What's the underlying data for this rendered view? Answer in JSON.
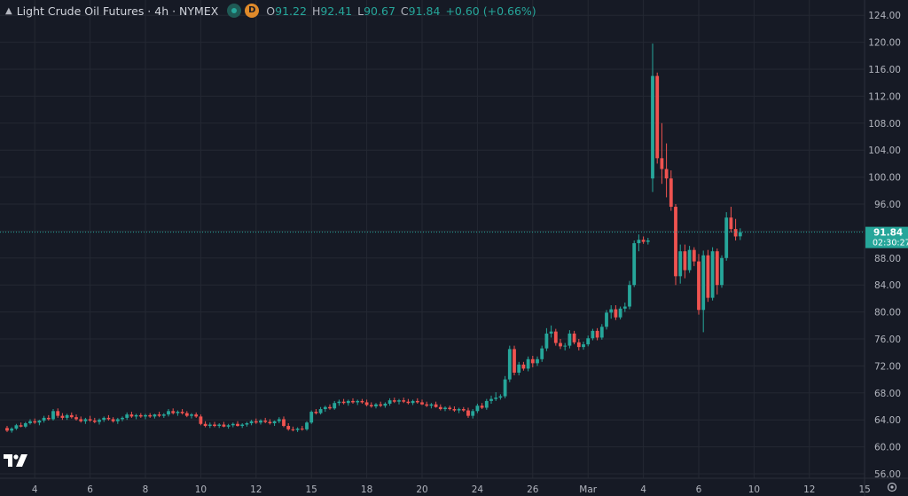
{
  "header": {
    "title": "Light Crude Oil Futures · 4h · NYMEX",
    "badge_letter": "D",
    "open_label": "O",
    "open": "91.22",
    "high_label": "H",
    "high": "92.41",
    "low_label": "L",
    "low": "90.67",
    "close_label": "C",
    "close": "91.84",
    "change": "+0.60 (+0.66%)"
  },
  "price_tag": {
    "price": "91.84",
    "countdown": "02:30:27"
  },
  "colors": {
    "up": "#26a69a",
    "down": "#ef5350",
    "background": "#161a25",
    "text": "#b2b5be",
    "grid": "#242833"
  },
  "icons": {
    "logo": "tradingview-logo",
    "settings": "gear-icon"
  },
  "chart_data": {
    "type": "candlestick",
    "title": "",
    "xlabel": "",
    "ylabel": "",
    "ylim": [
      54,
      126
    ],
    "yticks": [
      56,
      60,
      64,
      68,
      72,
      76,
      80,
      84,
      88,
      92,
      96,
      100,
      104,
      108,
      112,
      116,
      120,
      124
    ],
    "ytick_labels": [
      "56.00",
      "60.00",
      "64.00",
      "68.00",
      "72.00",
      "76.00",
      "80.00",
      "84.00",
      "88.00",
      "92.00",
      "96.00",
      "100.00",
      "104.00",
      "108.00",
      "112.00",
      "116.00",
      "120.00",
      "124.00"
    ],
    "xtick_labels": [
      "4",
      "6",
      "8",
      "10",
      "12",
      "15",
      "18",
      "20",
      "24",
      "26",
      "Mar",
      "4",
      "6",
      "10",
      "12",
      "15"
    ],
    "xtick_candle_index": [
      6,
      18,
      30,
      42,
      54,
      66,
      78,
      90,
      102,
      114,
      126,
      138,
      150,
      162,
      174,
      186
    ],
    "last_price": 91.84,
    "candles": [
      [
        62.8,
        63.1,
        62.2,
        62.4
      ],
      [
        62.4,
        62.9,
        62.1,
        62.7
      ],
      [
        62.7,
        63.4,
        62.5,
        63.2
      ],
      [
        63.2,
        63.6,
        62.9,
        63.0
      ],
      [
        63.0,
        63.7,
        62.8,
        63.5
      ],
      [
        63.5,
        64.1,
        63.3,
        63.8
      ],
      [
        63.8,
        64.2,
        63.4,
        63.6
      ],
      [
        63.6,
        64.0,
        63.2,
        63.9
      ],
      [
        63.9,
        64.6,
        63.6,
        64.3
      ],
      [
        64.3,
        64.7,
        63.9,
        64.1
      ],
      [
        64.1,
        65.6,
        63.9,
        65.3
      ],
      [
        65.3,
        65.7,
        64.3,
        64.6
      ],
      [
        64.6,
        65.0,
        64.0,
        64.3
      ],
      [
        64.3,
        64.9,
        64.0,
        64.7
      ],
      [
        64.7,
        65.1,
        64.2,
        64.4
      ],
      [
        64.4,
        64.8,
        63.9,
        64.1
      ],
      [
        64.1,
        64.5,
        63.6,
        63.8
      ],
      [
        63.8,
        64.3,
        63.4,
        64.1
      ],
      [
        64.1,
        64.6,
        63.7,
        63.9
      ],
      [
        63.9,
        64.3,
        63.5,
        63.7
      ],
      [
        63.7,
        64.2,
        63.3,
        64.0
      ],
      [
        64.0,
        64.5,
        63.7,
        64.3
      ],
      [
        64.3,
        64.7,
        63.9,
        64.1
      ],
      [
        64.1,
        64.4,
        63.6,
        63.8
      ],
      [
        63.8,
        64.3,
        63.4,
        64.1
      ],
      [
        64.1,
        64.5,
        63.8,
        64.3
      ],
      [
        64.3,
        65.1,
        64.0,
        64.8
      ],
      [
        64.8,
        65.2,
        64.3,
        64.5
      ],
      [
        64.5,
        64.9,
        64.1,
        64.7
      ],
      [
        64.7,
        65.0,
        64.3,
        64.5
      ],
      [
        64.5,
        64.9,
        64.1,
        64.7
      ],
      [
        64.7,
        65.0,
        64.3,
        64.5
      ],
      [
        64.5,
        64.9,
        64.2,
        64.8
      ],
      [
        64.8,
        65.2,
        64.4,
        64.6
      ],
      [
        64.6,
        65.0,
        64.3,
        64.8
      ],
      [
        64.8,
        65.6,
        64.5,
        65.3
      ],
      [
        65.3,
        65.7,
        64.8,
        65.0
      ],
      [
        65.0,
        65.4,
        64.6,
        65.2
      ],
      [
        65.2,
        65.6,
        64.8,
        65.0
      ],
      [
        65.0,
        65.3,
        64.4,
        64.6
      ],
      [
        64.6,
        65.0,
        64.2,
        64.8
      ],
      [
        64.8,
        65.1,
        64.3,
        64.5
      ],
      [
        64.5,
        64.8,
        63.2,
        63.4
      ],
      [
        63.4,
        63.8,
        62.9,
        63.1
      ],
      [
        63.1,
        63.6,
        62.8,
        63.3
      ],
      [
        63.3,
        63.7,
        62.9,
        63.1
      ],
      [
        63.1,
        63.5,
        62.8,
        63.3
      ],
      [
        63.3,
        63.7,
        62.9,
        63.0
      ],
      [
        63.0,
        63.4,
        62.7,
        63.2
      ],
      [
        63.2,
        63.6,
        62.9,
        63.4
      ],
      [
        63.4,
        63.8,
        63.0,
        63.1
      ],
      [
        63.1,
        63.5,
        62.8,
        63.3
      ],
      [
        63.3,
        63.7,
        63.0,
        63.5
      ],
      [
        63.5,
        64.0,
        63.2,
        63.8
      ],
      [
        63.8,
        64.2,
        63.4,
        63.6
      ],
      [
        63.6,
        64.1,
        63.3,
        63.9
      ],
      [
        63.9,
        64.3,
        63.5,
        63.7
      ],
      [
        63.7,
        64.1,
        63.3,
        63.5
      ],
      [
        63.5,
        63.9,
        63.1,
        63.8
      ],
      [
        63.8,
        64.4,
        63.5,
        64.1
      ],
      [
        64.1,
        64.5,
        62.9,
        63.1
      ],
      [
        63.1,
        63.5,
        62.4,
        62.6
      ],
      [
        62.6,
        63.0,
        62.3,
        62.5
      ],
      [
        62.5,
        62.9,
        62.2,
        62.7
      ],
      [
        62.7,
        63.1,
        62.4,
        62.6
      ],
      [
        62.6,
        63.8,
        62.4,
        63.6
      ],
      [
        63.6,
        65.4,
        63.4,
        65.2
      ],
      [
        65.2,
        65.6,
        64.8,
        65.0
      ],
      [
        65.0,
        65.9,
        64.8,
        65.6
      ],
      [
        65.6,
        66.1,
        65.2,
        65.9
      ],
      [
        65.9,
        66.3,
        65.5,
        65.7
      ],
      [
        65.7,
        66.8,
        65.5,
        66.5
      ],
      [
        66.5,
        67.0,
        66.1,
        66.7
      ],
      [
        66.7,
        67.1,
        66.3,
        66.5
      ],
      [
        66.5,
        67.0,
        66.1,
        66.8
      ],
      [
        66.8,
        67.2,
        66.4,
        66.6
      ],
      [
        66.6,
        67.0,
        66.2,
        66.8
      ],
      [
        66.8,
        67.1,
        66.4,
        66.6
      ],
      [
        66.6,
        67.0,
        66.0,
        66.2
      ],
      [
        66.2,
        66.6,
        65.8,
        66.0
      ],
      [
        66.0,
        66.5,
        65.7,
        66.3
      ],
      [
        66.3,
        66.7,
        65.9,
        66.1
      ],
      [
        66.1,
        66.6,
        65.8,
        66.4
      ],
      [
        66.4,
        67.2,
        66.1,
        66.9
      ],
      [
        66.9,
        67.3,
        66.5,
        66.7
      ],
      [
        66.7,
        67.1,
        66.3,
        66.9
      ],
      [
        66.9,
        67.3,
        66.5,
        66.7
      ],
      [
        66.7,
        67.1,
        66.3,
        66.5
      ],
      [
        66.5,
        67.0,
        66.2,
        66.8
      ],
      [
        66.8,
        67.2,
        66.4,
        66.6
      ],
      [
        66.6,
        67.0,
        66.2,
        66.3
      ],
      [
        66.3,
        66.7,
        65.9,
        66.1
      ],
      [
        66.1,
        66.5,
        65.7,
        66.3
      ],
      [
        66.3,
        66.7,
        65.8,
        65.9
      ],
      [
        65.9,
        66.3,
        65.4,
        65.6
      ],
      [
        65.6,
        66.0,
        65.3,
        65.8
      ],
      [
        65.8,
        66.1,
        65.4,
        65.6
      ],
      [
        65.6,
        66.0,
        65.2,
        65.4
      ],
      [
        65.4,
        65.8,
        65.0,
        65.6
      ],
      [
        65.6,
        65.9,
        65.2,
        65.4
      ],
      [
        65.4,
        65.8,
        64.3,
        64.6
      ],
      [
        64.6,
        65.6,
        64.2,
        65.3
      ],
      [
        65.3,
        66.4,
        65.0,
        66.1
      ],
      [
        66.1,
        66.5,
        65.6,
        65.8
      ],
      [
        65.8,
        67.1,
        65.5,
        66.8
      ],
      [
        66.8,
        67.6,
        66.4,
        67.1
      ],
      [
        67.1,
        68.1,
        66.8,
        67.3
      ],
      [
        67.3,
        67.8,
        67.0,
        67.5
      ],
      [
        67.5,
        70.5,
        67.2,
        70.0
      ],
      [
        70.0,
        75.0,
        69.6,
        74.5
      ],
      [
        74.5,
        75.0,
        70.6,
        71.0
      ],
      [
        71.0,
        72.6,
        70.6,
        72.2
      ],
      [
        72.2,
        72.6,
        71.3,
        71.6
      ],
      [
        71.6,
        73.4,
        71.2,
        73.0
      ],
      [
        73.0,
        73.5,
        71.8,
        72.4
      ],
      [
        72.4,
        73.4,
        72.0,
        73.0
      ],
      [
        73.0,
        75.0,
        72.6,
        74.6
      ],
      [
        74.6,
        77.6,
        74.2,
        76.8
      ],
      [
        76.8,
        78.0,
        76.2,
        77.1
      ],
      [
        77.1,
        77.5,
        75.0,
        75.4
      ],
      [
        75.4,
        76.0,
        74.5,
        74.9
      ],
      [
        74.9,
        75.4,
        74.3,
        75.0
      ],
      [
        75.0,
        77.3,
        74.6,
        76.8
      ],
      [
        76.8,
        77.2,
        75.2,
        75.5
      ],
      [
        75.5,
        76.0,
        74.3,
        74.8
      ],
      [
        74.8,
        75.6,
        74.4,
        75.2
      ],
      [
        75.2,
        76.5,
        74.9,
        76.1
      ],
      [
        76.1,
        77.5,
        75.8,
        77.2
      ],
      [
        77.2,
        77.6,
        75.8,
        76.2
      ],
      [
        76.2,
        78.2,
        75.9,
        77.8
      ],
      [
        77.8,
        80.3,
        77.4,
        79.9
      ],
      [
        79.9,
        81.0,
        79.0,
        80.4
      ],
      [
        80.4,
        81.0,
        78.8,
        79.2
      ],
      [
        79.2,
        80.8,
        78.9,
        80.5
      ],
      [
        80.5,
        81.4,
        80.0,
        80.8
      ],
      [
        80.8,
        84.6,
        80.4,
        84.0
      ],
      [
        84.0,
        90.6,
        83.7,
        90.2
      ],
      [
        90.2,
        91.5,
        89.0,
        90.7
      ],
      [
        90.7,
        91.2,
        90.1,
        90.4
      ],
      [
        90.4,
        91.0,
        90.0,
        90.6
      ],
      [
        99.8,
        119.8,
        97.8,
        115.0
      ],
      [
        115.0,
        115.5,
        102.0,
        102.8
      ],
      [
        102.8,
        108.0,
        99.0,
        101.2
      ],
      [
        101.2,
        105.0,
        97.0,
        99.8
      ],
      [
        99.8,
        101.0,
        95.0,
        95.6
      ],
      [
        95.6,
        96.0,
        84.0,
        85.3
      ],
      [
        85.3,
        90.0,
        84.2,
        89.0
      ],
      [
        89.0,
        90.0,
        85.0,
        86.2
      ],
      [
        86.2,
        89.8,
        85.8,
        89.2
      ],
      [
        89.2,
        89.6,
        86.8,
        87.5
      ],
      [
        87.5,
        88.6,
        79.6,
        80.3
      ],
      [
        80.3,
        89.1,
        77.0,
        88.4
      ],
      [
        88.4,
        89.2,
        81.5,
        82.1
      ],
      [
        82.1,
        89.6,
        81.7,
        89.0
      ],
      [
        89.0,
        89.4,
        82.6,
        84.0
      ],
      [
        84.0,
        88.4,
        83.6,
        88.0
      ],
      [
        88.0,
        94.8,
        87.6,
        94.0
      ],
      [
        94.0,
        95.6,
        91.8,
        92.3
      ],
      [
        92.3,
        93.8,
        90.6,
        91.2
      ],
      [
        91.22,
        92.41,
        90.67,
        91.84
      ]
    ]
  }
}
